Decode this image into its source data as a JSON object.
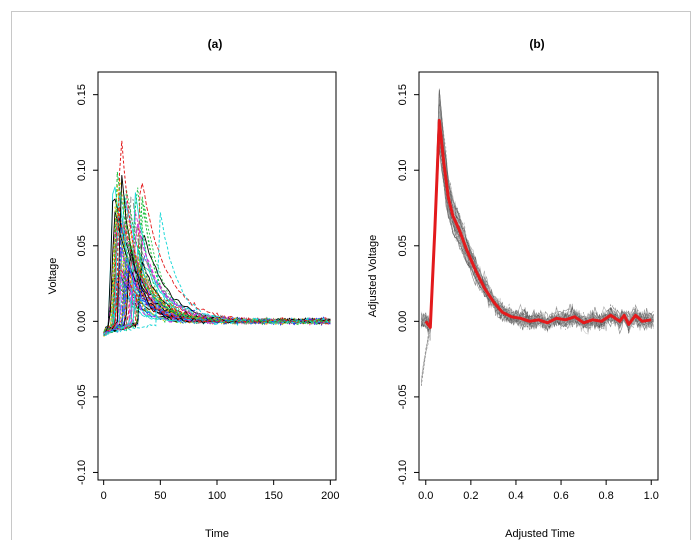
{
  "chart_data": [
    {
      "type": "line",
      "title": "(a)",
      "xlabel": "Time",
      "ylabel": "Voltage",
      "xlim": [
        -5,
        205
      ],
      "ylim": [
        -0.105,
        0.165
      ],
      "xticks": [
        "0",
        "50",
        "100",
        "150",
        "200"
      ],
      "xtick_values": [
        0,
        50,
        100,
        150,
        200
      ],
      "yticks": [
        "-0.10",
        "-0.05",
        "0.00",
        "0.05",
        "0.10",
        "0.15"
      ],
      "ytick_values": [
        -0.1,
        -0.05,
        0.0,
        0.05,
        0.1,
        0.15
      ],
      "grid": false,
      "legend": "none",
      "series_count": 60,
      "series_colors": [
        "#000000",
        "#e31a1c",
        "#1fbf3f",
        "#1f3fff",
        "#1fd8d8",
        "#e030e0",
        "#e0c800",
        "#8a8a8a"
      ],
      "highlighted_series": [
        {
          "color": "#e31a1c",
          "peak_x": 15,
          "peak_y": 0.13
        },
        {
          "color": "#1fd8d8",
          "peak_x": 50,
          "peak_y": 0.073
        },
        {
          "color": "#1fbf3f",
          "peak_x": 12,
          "peak_y": 0.099
        }
      ],
      "typical_peak_x_range": [
        8,
        35
      ],
      "typical_peak_y_range": [
        0.03,
        0.1
      ],
      "baseline_y": 0.0
    },
    {
      "type": "line",
      "title": "(b)",
      "xlabel": "Adjusted Time",
      "ylabel": "Adjusted Voltage",
      "xlim": [
        -0.03,
        1.03
      ],
      "ylim": [
        -0.105,
        0.165
      ],
      "xticks": [
        "0.0",
        "0.2",
        "0.4",
        "0.6",
        "0.8",
        "1.0"
      ],
      "xtick_values": [
        0.0,
        0.2,
        0.4,
        0.6,
        0.8,
        1.0
      ],
      "yticks": [
        "-0.10",
        "-0.05",
        "0.00",
        "0.05",
        "0.10",
        "0.15"
      ],
      "ytick_values": [
        -0.1,
        -0.05,
        0.0,
        0.05,
        0.1,
        0.15
      ],
      "grid": false,
      "legend": "none",
      "background_series_color": "#808080",
      "series": [
        {
          "color": "#e31a1c",
          "x": [
            0.0,
            0.02,
            0.04,
            0.06,
            0.08,
            0.1,
            0.12,
            0.15,
            0.18,
            0.22,
            0.26,
            0.3,
            0.34,
            0.38,
            0.42,
            0.46,
            0.5,
            0.54,
            0.58,
            0.62,
            0.66,
            0.7,
            0.74,
            0.78,
            0.82,
            0.86,
            0.88,
            0.9,
            0.93,
            0.96,
            1.0
          ],
          "values": [
            0.0,
            -0.004,
            0.06,
            0.133,
            0.105,
            0.082,
            0.07,
            0.06,
            0.048,
            0.034,
            0.022,
            0.013,
            0.006,
            0.003,
            0.002,
            0.0,
            0.001,
            -0.001,
            0.002,
            0.001,
            0.003,
            -0.001,
            0.001,
            0.0,
            0.004,
            0.0,
            0.004,
            -0.002,
            0.004,
            0.0,
            0.001
          ]
        }
      ]
    }
  ]
}
